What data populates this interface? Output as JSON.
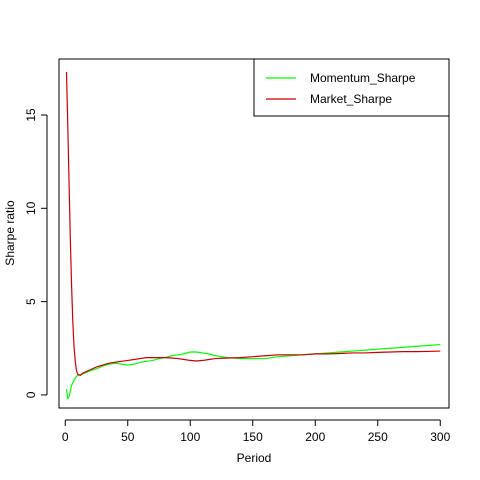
{
  "chart_data": {
    "type": "line",
    "title": "",
    "xlabel": "Period",
    "ylabel": "Sharpe ratio",
    "xlim": [
      -5,
      307
    ],
    "ylim": [
      -0.7,
      18.0
    ],
    "x_ticks": [
      0,
      50,
      100,
      150,
      200,
      250,
      300
    ],
    "y_ticks": [
      0,
      5,
      10,
      15
    ],
    "grid": false,
    "legend": {
      "position": "top-right"
    },
    "series": [
      {
        "name": "Momentum_Sharpe",
        "color": "#00FF00",
        "points": [
          [
            1,
            0.3
          ],
          [
            2,
            -0.2
          ],
          [
            3,
            -0.1
          ],
          [
            4,
            0.2
          ],
          [
            5,
            0.5
          ],
          [
            7,
            0.8
          ],
          [
            9,
            1.0
          ],
          [
            12,
            1.1
          ],
          [
            15,
            1.15
          ],
          [
            20,
            1.3
          ],
          [
            25,
            1.4
          ],
          [
            30,
            1.55
          ],
          [
            35,
            1.65
          ],
          [
            40,
            1.7
          ],
          [
            45,
            1.65
          ],
          [
            50,
            1.6
          ],
          [
            55,
            1.65
          ],
          [
            60,
            1.75
          ],
          [
            65,
            1.8
          ],
          [
            70,
            1.85
          ],
          [
            75,
            1.95
          ],
          [
            80,
            2.0
          ],
          [
            85,
            2.1
          ],
          [
            90,
            2.15
          ],
          [
            95,
            2.2
          ],
          [
            100,
            2.3
          ],
          [
            105,
            2.3
          ],
          [
            110,
            2.25
          ],
          [
            115,
            2.2
          ],
          [
            120,
            2.1
          ],
          [
            125,
            2.05
          ],
          [
            130,
            2.0
          ],
          [
            140,
            1.95
          ],
          [
            150,
            1.95
          ],
          [
            160,
            1.95
          ],
          [
            170,
            2.05
          ],
          [
            180,
            2.1
          ],
          [
            190,
            2.15
          ],
          [
            200,
            2.2
          ],
          [
            210,
            2.25
          ],
          [
            220,
            2.3
          ],
          [
            230,
            2.35
          ],
          [
            240,
            2.4
          ],
          [
            250,
            2.45
          ],
          [
            260,
            2.5
          ],
          [
            270,
            2.55
          ],
          [
            280,
            2.6
          ],
          [
            290,
            2.65
          ],
          [
            300,
            2.7
          ]
        ]
      },
      {
        "name": "Market_Sharpe",
        "color": "#CC0000",
        "points": [
          [
            1,
            17.3
          ],
          [
            2,
            14.5
          ],
          [
            3,
            11.5
          ],
          [
            4,
            8.5
          ],
          [
            5,
            6.0
          ],
          [
            6,
            4.0
          ],
          [
            7,
            2.6
          ],
          [
            8,
            1.8
          ],
          [
            9,
            1.3
          ],
          [
            10,
            1.1
          ],
          [
            12,
            1.05
          ],
          [
            15,
            1.2
          ],
          [
            20,
            1.35
          ],
          [
            25,
            1.5
          ],
          [
            30,
            1.6
          ],
          [
            35,
            1.7
          ],
          [
            40,
            1.75
          ],
          [
            45,
            1.8
          ],
          [
            50,
            1.85
          ],
          [
            55,
            1.9
          ],
          [
            60,
            1.95
          ],
          [
            65,
            2.0
          ],
          [
            70,
            2.0
          ],
          [
            75,
            2.0
          ],
          [
            80,
            2.0
          ],
          [
            85,
            1.98
          ],
          [
            90,
            1.95
          ],
          [
            95,
            1.9
          ],
          [
            100,
            1.85
          ],
          [
            105,
            1.82
          ],
          [
            110,
            1.85
          ],
          [
            115,
            1.9
          ],
          [
            120,
            1.95
          ],
          [
            130,
            1.98
          ],
          [
            140,
            2.0
          ],
          [
            150,
            2.05
          ],
          [
            160,
            2.1
          ],
          [
            170,
            2.15
          ],
          [
            180,
            2.15
          ],
          [
            190,
            2.15
          ],
          [
            200,
            2.2
          ],
          [
            210,
            2.2
          ],
          [
            220,
            2.22
          ],
          [
            230,
            2.25
          ],
          [
            240,
            2.25
          ],
          [
            250,
            2.28
          ],
          [
            260,
            2.3
          ],
          [
            270,
            2.32
          ],
          [
            280,
            2.32
          ],
          [
            290,
            2.33
          ],
          [
            300,
            2.35
          ]
        ]
      }
    ]
  }
}
